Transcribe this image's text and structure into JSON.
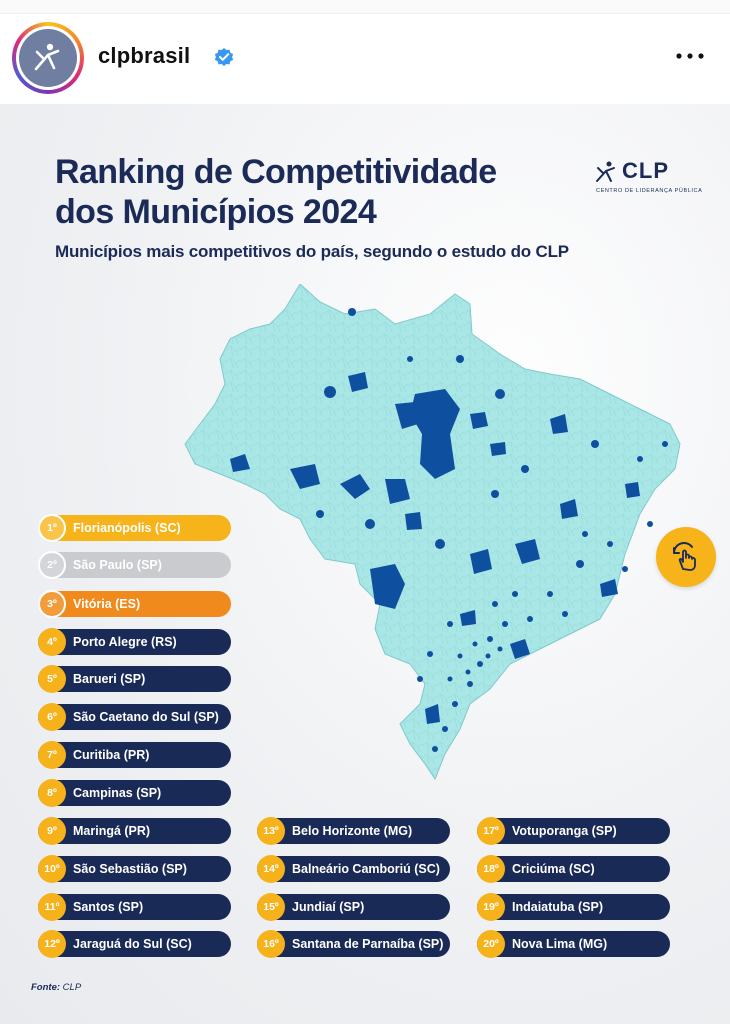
{
  "account": {
    "username": "clpbrasil"
  },
  "post": {
    "title_line1": "Ranking de Competitividade",
    "title_line2": "dos Municípios 2024",
    "subtitle": "Municípios mais competitivos do país, segundo o estudo do CLP",
    "logo_text": "CLP",
    "logo_subtext": "CENTRO DE LIDERANÇA PÚBLICA",
    "source_label": "Fonte:",
    "source_value": "CLP",
    "ranking": [
      {
        "rank": "1º",
        "name": "Florianópolis (SC)",
        "style": "gold"
      },
      {
        "rank": "2º",
        "name": "São Paulo (SP)",
        "style": "silver"
      },
      {
        "rank": "3º",
        "name": "Vitória (ES)",
        "style": "bronze"
      },
      {
        "rank": "4º",
        "name": "Porto Alegre (RS)",
        "style": "navy"
      },
      {
        "rank": "5º",
        "name": "Barueri (SP)",
        "style": "navy"
      },
      {
        "rank": "6º",
        "name": "São Caetano do Sul (SP)",
        "style": "navy"
      },
      {
        "rank": "7º",
        "name": "Curitiba (PR)",
        "style": "navy"
      },
      {
        "rank": "8º",
        "name": "Campinas (SP)",
        "style": "navy"
      },
      {
        "rank": "9º",
        "name": "Maringá (PR)",
        "style": "navy"
      },
      {
        "rank": "10º",
        "name": "São Sebastião (SP)",
        "style": "navy"
      },
      {
        "rank": "11º",
        "name": "Santos (SP)",
        "style": "navy"
      },
      {
        "rank": "12º",
        "name": "Jaraguá do Sul (SC)",
        "style": "navy"
      },
      {
        "rank": "13º",
        "name": "Belo Horizonte (MG)",
        "style": "navy"
      },
      {
        "rank": "14º",
        "name": "Balneário Camboriú (SC)",
        "style": "navy"
      },
      {
        "rank": "15º",
        "name": "Jundiaí (SP)",
        "style": "navy"
      },
      {
        "rank": "16º",
        "name": "Santana de Parnaíba (SP)",
        "style": "navy"
      },
      {
        "rank": "17º",
        "name": "Votuporanga (SP)",
        "style": "navy"
      },
      {
        "rank": "18º",
        "name": "Criciúma (SC)",
        "style": "navy"
      },
      {
        "rank": "19º",
        "name": "Indaiatuba (SP)",
        "style": "navy"
      },
      {
        "rank": "20º",
        "name": "Nova Lima (MG)",
        "style": "navy"
      }
    ]
  },
  "icons": {
    "verified": "verified-badge-icon",
    "more": "more-options-icon",
    "swipe": "swipe-hand-icon",
    "avatar": "clp-avatar-logo"
  },
  "colors": {
    "navy": "#1a2a57",
    "gold": "#f7b31a",
    "silver": "#c9cbce",
    "bronze": "#f08a1c",
    "map_land": "#a9e6e6",
    "map_highlight": "#0f4fa0",
    "verified": "#3897f0"
  }
}
